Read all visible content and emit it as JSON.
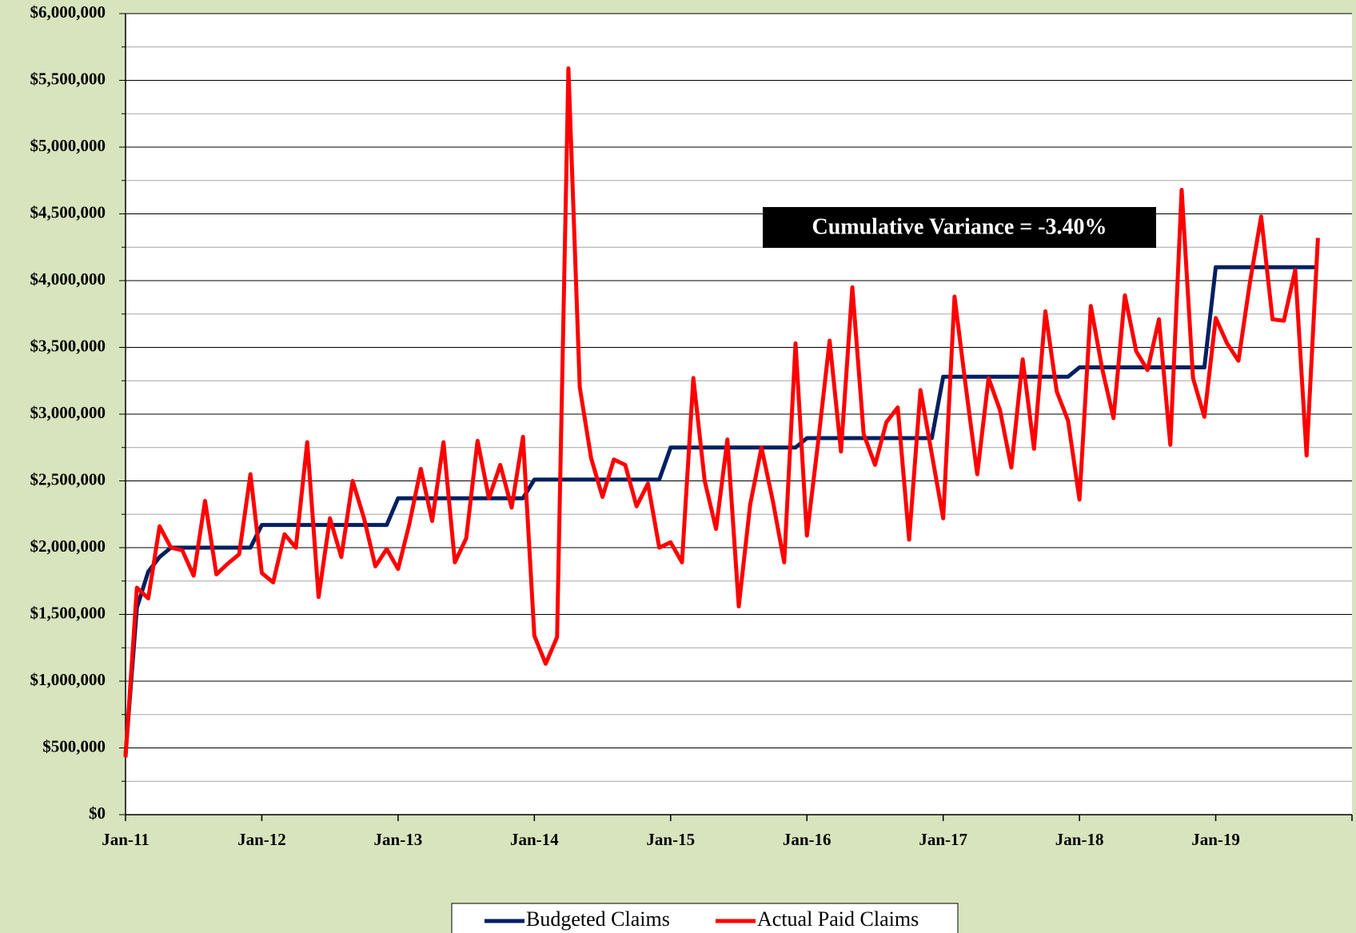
{
  "chart_data": {
    "type": "line",
    "annotation": "Cumulative Variance = -3.40%",
    "categories": [
      "Jan-11",
      null,
      null,
      null,
      null,
      null,
      null,
      null,
      null,
      null,
      null,
      null,
      "Jan-12",
      null,
      null,
      null,
      null,
      null,
      null,
      null,
      null,
      null,
      null,
      null,
      "Jan-13",
      null,
      null,
      null,
      null,
      null,
      null,
      null,
      null,
      null,
      null,
      null,
      "Jan-14",
      null,
      null,
      null,
      null,
      null,
      null,
      null,
      null,
      null,
      null,
      null,
      "Jan-15",
      null,
      null,
      null,
      null,
      null,
      null,
      null,
      null,
      null,
      null,
      null,
      "Jan-16",
      null,
      null,
      null,
      null,
      null,
      null,
      null,
      null,
      null,
      null,
      null,
      "Jan-17",
      null,
      null,
      null,
      null,
      null,
      null,
      null,
      null,
      null,
      null,
      null,
      "Jan-18",
      null,
      null,
      null,
      null,
      null,
      null,
      null,
      null,
      null,
      null,
      null,
      "Jan-19",
      null,
      null,
      null,
      null,
      null,
      null,
      null,
      null,
      null
    ],
    "series": [
      {
        "name": "Budgeted Claims",
        "color": "#002060",
        "values": [
          450000,
          1550000,
          1820000,
          1930000,
          2000000,
          2000000,
          2000000,
          2000000,
          2000000,
          2000000,
          2000000,
          2000000,
          2170000,
          2170000,
          2170000,
          2170000,
          2170000,
          2170000,
          2170000,
          2170000,
          2170000,
          2170000,
          2170000,
          2170000,
          2370000,
          2370000,
          2370000,
          2370000,
          2370000,
          2370000,
          2370000,
          2370000,
          2370000,
          2370000,
          2370000,
          2370000,
          2510000,
          2510000,
          2510000,
          2510000,
          2510000,
          2510000,
          2510000,
          2510000,
          2510000,
          2510000,
          2510000,
          2510000,
          2750000,
          2750000,
          2750000,
          2750000,
          2750000,
          2750000,
          2750000,
          2750000,
          2750000,
          2750000,
          2750000,
          2750000,
          2820000,
          2820000,
          2820000,
          2820000,
          2820000,
          2820000,
          2820000,
          2820000,
          2820000,
          2820000,
          2820000,
          2820000,
          3280000,
          3280000,
          3280000,
          3280000,
          3280000,
          3280000,
          3280000,
          3280000,
          3280000,
          3280000,
          3280000,
          3280000,
          3350000,
          3350000,
          3350000,
          3350000,
          3350000,
          3350000,
          3350000,
          3350000,
          3350000,
          3350000,
          3350000,
          3350000,
          4100000,
          4100000,
          4100000,
          4100000,
          4100000,
          4100000,
          4100000,
          4100000,
          4100000,
          4100000
        ]
      },
      {
        "name": "Actual Paid Claims",
        "color": "#ff0000",
        "values": [
          430000,
          1700000,
          1620000,
          2160000,
          2000000,
          1980000,
          1790000,
          2350000,
          1800000,
          1880000,
          1950000,
          2550000,
          1810000,
          1740000,
          2100000,
          2000000,
          2790000,
          1630000,
          2220000,
          1930000,
          2500000,
          2220000,
          1860000,
          1990000,
          1840000,
          2180000,
          2590000,
          2200000,
          2790000,
          1890000,
          2070000,
          2800000,
          2370000,
          2620000,
          2300000,
          2830000,
          1340000,
          1130000,
          1330000,
          5590000,
          3200000,
          2670000,
          2380000,
          2660000,
          2620000,
          2310000,
          2480000,
          2000000,
          2040000,
          1890000,
          3270000,
          2500000,
          2140000,
          2810000,
          1560000,
          2320000,
          2750000,
          2350000,
          1890000,
          3530000,
          2090000,
          2800000,
          3550000,
          2720000,
          3950000,
          2850000,
          2620000,
          2940000,
          3050000,
          2060000,
          3180000,
          2700000,
          2220000,
          3880000,
          3200000,
          2550000,
          3270000,
          3030000,
          2600000,
          3410000,
          2740000,
          3770000,
          3170000,
          2950000,
          2360000,
          3810000,
          3340000,
          2970000,
          3890000,
          3470000,
          3330000,
          3710000,
          2770000,
          4680000,
          3270000,
          2980000,
          3720000,
          3530000,
          3400000,
          3980000,
          4480000,
          3710000,
          3700000,
          4080000,
          2690000,
          4320000
        ]
      }
    ],
    "ylim": [
      0,
      6000000
    ],
    "yticks": [
      {
        "value": 0,
        "label": "$0"
      },
      {
        "value": 500000,
        "label": "$500,000"
      },
      {
        "value": 1000000,
        "label": "$1,000,000"
      },
      {
        "value": 1500000,
        "label": "$1,500,000"
      },
      {
        "value": 2000000,
        "label": "$2,000,000"
      },
      {
        "value": 2500000,
        "label": "$2,500,000"
      },
      {
        "value": 3000000,
        "label": "$3,000,000"
      },
      {
        "value": 3500000,
        "label": "$3,500,000"
      },
      {
        "value": 4000000,
        "label": "$4,000,000"
      },
      {
        "value": 4500000,
        "label": "$4,500,000"
      },
      {
        "value": 5000000,
        "label": "$5,000,000"
      },
      {
        "value": 5500000,
        "label": "$5,500,000"
      },
      {
        "value": 6000000,
        "label": "$6,000,000"
      }
    ],
    "grid": true,
    "legend": "bottom"
  }
}
